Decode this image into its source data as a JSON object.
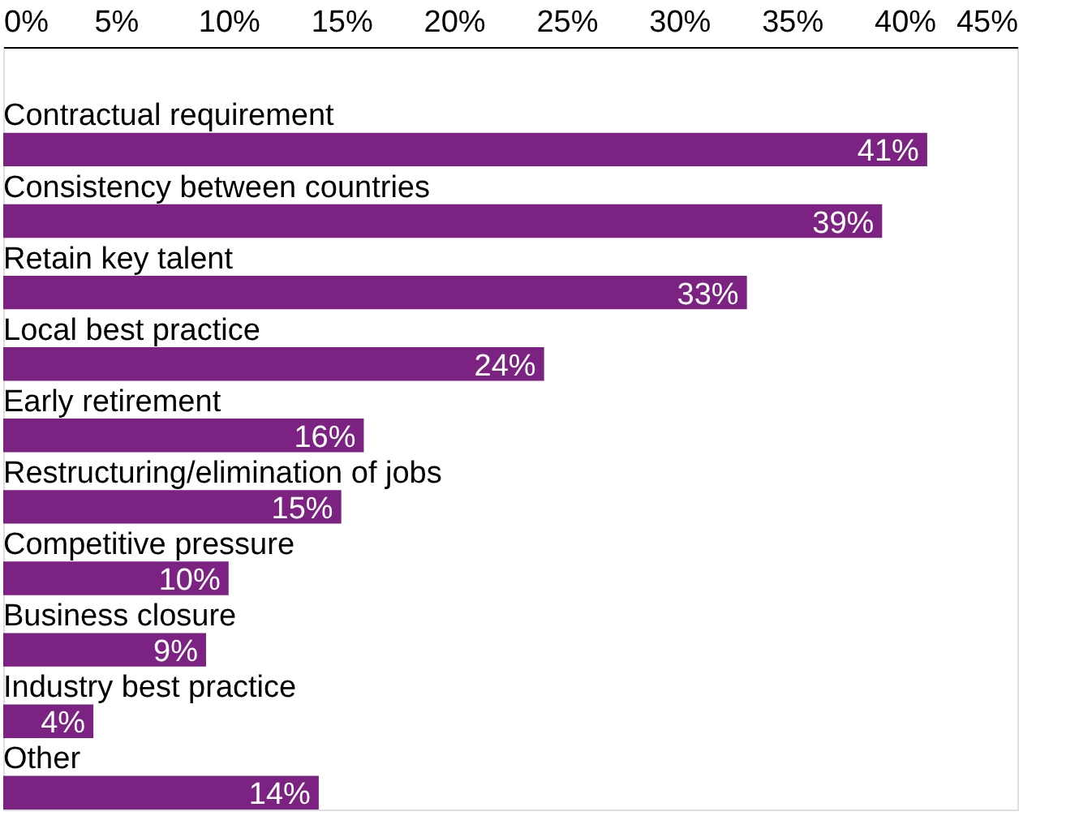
{
  "chart_data": {
    "type": "bar",
    "orientation": "horizontal",
    "categories": [
      "Contractual requirement",
      "Consistency between countries",
      "Retain key talent",
      "Local best practice",
      "Early retirement",
      "Restructuring/elimination of jobs",
      "Competitive pressure",
      "Business closure",
      "Industry best practice",
      "Other"
    ],
    "values": [
      41,
      39,
      33,
      24,
      16,
      15,
      10,
      9,
      4,
      14
    ],
    "value_labels": [
      "41%",
      "39%",
      "33%",
      "24%",
      "16%",
      "15%",
      "10%",
      "9%",
      "4%",
      "14%"
    ],
    "color": "#7b2283",
    "xlim": [
      0,
      45
    ],
    "xticks": [
      {
        "value": 0,
        "label": "0%"
      },
      {
        "value": 5,
        "label": "5%"
      },
      {
        "value": 10,
        "label": "10%"
      },
      {
        "value": 15,
        "label": "15%"
      },
      {
        "value": 20,
        "label": "20%"
      },
      {
        "value": 25,
        "label": "25%"
      },
      {
        "value": 30,
        "label": "30%"
      },
      {
        "value": 35,
        "label": "35%"
      },
      {
        "value": 40,
        "label": "40%"
      },
      {
        "value": 45,
        "label": "45%"
      }
    ],
    "tick_labels": "x",
    "grid": false
  }
}
